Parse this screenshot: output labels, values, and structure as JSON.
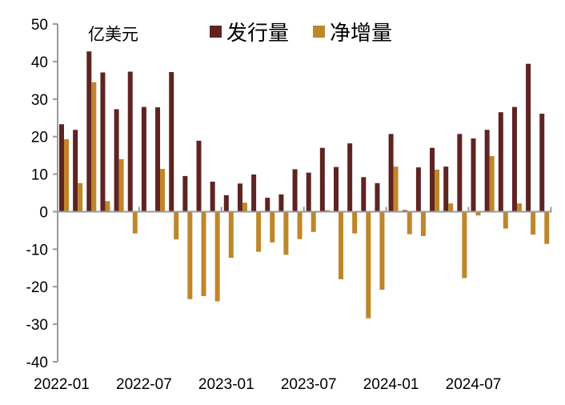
{
  "chart_data": {
    "type": "bar",
    "unit_label": "亿美元",
    "ylim": [
      -40,
      50
    ],
    "yticks": [
      50,
      40,
      30,
      20,
      10,
      0,
      -10,
      -20,
      -30,
      -40
    ],
    "xtick_labels": [
      "2022-01",
      "2022-07",
      "2023-01",
      "2023-07",
      "2024-01",
      "2024-07"
    ],
    "legend_position": "top",
    "grid": false,
    "categories": [
      "2022-01",
      "2022-02",
      "2022-03",
      "2022-04",
      "2022-05",
      "2022-06",
      "2022-07",
      "2022-08",
      "2022-09",
      "2022-10",
      "2022-11",
      "2022-12",
      "2023-01",
      "2023-02",
      "2023-03",
      "2023-04",
      "2023-05",
      "2023-06",
      "2023-07",
      "2023-08",
      "2023-09",
      "2023-10",
      "2023-11",
      "2023-12",
      "2024-01",
      "2024-02",
      "2024-03",
      "2024-04",
      "2024-05",
      "2024-06",
      "2024-07",
      "2024-08",
      "2024-09",
      "2024-10",
      "2024-11",
      "2024-12"
    ],
    "series": [
      {
        "name": "发行量",
        "color": "#5f2322",
        "values": [
          23.3,
          21.8,
          42.7,
          37.1,
          27.3,
          37.3,
          27.9,
          27.8,
          37.2,
          9.5,
          18.9,
          8.0,
          4.4,
          7.5,
          9.9,
          3.7,
          4.6,
          11.3,
          10.4,
          17.0,
          11.9,
          18.2,
          9.2,
          7.6,
          20.7,
          0.4,
          11.8,
          17.0,
          12.0,
          20.7,
          19.5,
          21.8,
          26.5,
          27.9,
          39.4,
          26.1
        ]
      },
      {
        "name": "净增量",
        "color": "#bf862a",
        "values": [
          19.3,
          7.6,
          34.5,
          2.8,
          14.0,
          -5.8,
          0,
          11.4,
          -7.4,
          -23.3,
          -22.5,
          -23.9,
          -12.3,
          2.4,
          -10.7,
          -8.2,
          -11.5,
          -7.3,
          -5.4,
          0.4,
          -18.0,
          -5.8,
          -28.4,
          -20.8,
          12.0,
          -6.0,
          -6.5,
          11.2,
          2.2,
          -17.7,
          -1.0,
          14.8,
          -4.5,
          2.2,
          -6.1,
          -8.6
        ]
      }
    ]
  }
}
